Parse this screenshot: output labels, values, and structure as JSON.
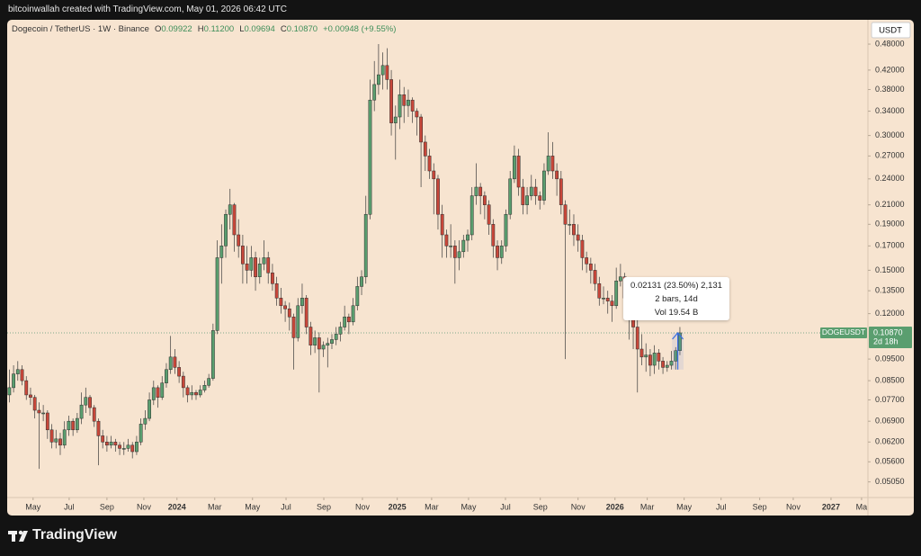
{
  "chart_data": {
    "type": "candlestick",
    "header": "bitcoinwallah created with TradingView.com, May 01, 2026 06:42 UTC",
    "symbol": "Dogecoin / TetherUS · 1W · Binance",
    "ohlc_fields": [
      {
        "key": "O",
        "value": "0.09922"
      },
      {
        "key": "H",
        "value": "0.11200"
      },
      {
        "key": "L",
        "value": "0.09694"
      },
      {
        "key": "C",
        "value": "0.10870"
      }
    ],
    "change": "+0.00948 (+9.55%)",
    "currency": "USDT",
    "ticker": "DOGEUSDT",
    "last_price": {
      "value": 0.1087,
      "label": "0.10870"
    },
    "countdown": "2d 18h",
    "measure_lines": [
      "0.02131 (23.50%) 2,131",
      "2 bars, 14d",
      "Vol 19.54 B"
    ],
    "brand": "TradingView",
    "log_scale": true,
    "grid": false,
    "up_color": "#5a9e6f",
    "down_color": "#c8473a",
    "ylim": [
      0.0466,
      0.544
    ],
    "yticks": [
      {
        "value": 0.48,
        "label": "0.48000"
      },
      {
        "value": 0.42,
        "label": "0.42000"
      },
      {
        "value": 0.38,
        "label": "0.38000"
      },
      {
        "value": 0.34,
        "label": "0.34000"
      },
      {
        "value": 0.3,
        "label": "0.30000"
      },
      {
        "value": 0.27,
        "label": "0.27000"
      },
      {
        "value": 0.24,
        "label": "0.24000"
      },
      {
        "value": 0.21,
        "label": "0.21000"
      },
      {
        "value": 0.19,
        "label": "0.19000"
      },
      {
        "value": 0.17,
        "label": "0.17000"
      },
      {
        "value": 0.15,
        "label": "0.15000"
      },
      {
        "value": 0.135,
        "label": "0.13500"
      },
      {
        "value": 0.12,
        "label": "0.12000"
      },
      {
        "value": 0.095,
        "label": "0.09500"
      },
      {
        "value": 0.085,
        "label": "0.08500"
      },
      {
        "value": 0.077,
        "label": "0.07700"
      },
      {
        "value": 0.069,
        "label": "0.06900"
      },
      {
        "value": 0.062,
        "label": "0.06200"
      },
      {
        "value": 0.056,
        "label": "0.05600"
      },
      {
        "value": 0.0505,
        "label": "0.05050"
      }
    ],
    "xlim": [
      -0.5,
      202.3
    ],
    "xticks": [
      {
        "value": 5.6,
        "label": "May"
      },
      {
        "value": 14.1,
        "label": "Jul"
      },
      {
        "value": 23,
        "label": "Sep"
      },
      {
        "value": 31.7,
        "label": "Nov"
      },
      {
        "value": 39.5,
        "label": "2024"
      },
      {
        "value": 48.4,
        "label": "Mar"
      },
      {
        "value": 57.3,
        "label": "May"
      },
      {
        "value": 65.2,
        "label": "Jul"
      },
      {
        "value": 74.1,
        "label": "Sep"
      },
      {
        "value": 83.2,
        "label": "Nov"
      },
      {
        "value": 91.4,
        "label": "2025"
      },
      {
        "value": 99.5,
        "label": "Mar"
      },
      {
        "value": 108.2,
        "label": "May"
      },
      {
        "value": 116.9,
        "label": "Jul"
      },
      {
        "value": 125.1,
        "label": "Sep"
      },
      {
        "value": 134,
        "label": "Nov"
      },
      {
        "value": 142.7,
        "label": "2026"
      },
      {
        "value": 150.3,
        "label": "Mar"
      },
      {
        "value": 159,
        "label": "May"
      },
      {
        "value": 167.7,
        "label": "Jul"
      },
      {
        "value": 176.8,
        "label": "Sep"
      },
      {
        "value": 184.7,
        "label": "Nov"
      },
      {
        "value": 193.6,
        "label": "2027"
      },
      {
        "value": 200.8,
        "label": "Ma"
      }
    ],
    "candles": [
      [
        0.079,
        0.09,
        0.076,
        0.082
      ],
      [
        0.082,
        0.092,
        0.08,
        0.088
      ],
      [
        0.088,
        0.094,
        0.085,
        0.09
      ],
      [
        0.09,
        0.092,
        0.083,
        0.085
      ],
      [
        0.085,
        0.087,
        0.077,
        0.079
      ],
      [
        0.079,
        0.082,
        0.075,
        0.078
      ],
      [
        0.078,
        0.079,
        0.07,
        0.073
      ],
      [
        0.073,
        0.076,
        0.054,
        0.072
      ],
      [
        0.072,
        0.075,
        0.069,
        0.072
      ],
      [
        0.072,
        0.073,
        0.063,
        0.066
      ],
      [
        0.066,
        0.068,
        0.06,
        0.062
      ],
      [
        0.062,
        0.066,
        0.06,
        0.063
      ],
      [
        0.063,
        0.065,
        0.058,
        0.061
      ],
      [
        0.061,
        0.069,
        0.06,
        0.066
      ],
      [
        0.066,
        0.071,
        0.064,
        0.069
      ],
      [
        0.069,
        0.07,
        0.064,
        0.066
      ],
      [
        0.066,
        0.072,
        0.065,
        0.07
      ],
      [
        0.07,
        0.08,
        0.068,
        0.075
      ],
      [
        0.075,
        0.082,
        0.072,
        0.078
      ],
      [
        0.078,
        0.079,
        0.071,
        0.074
      ],
      [
        0.074,
        0.075,
        0.067,
        0.069
      ],
      [
        0.069,
        0.07,
        0.055,
        0.064
      ],
      [
        0.064,
        0.066,
        0.06,
        0.062
      ],
      [
        0.062,
        0.064,
        0.059,
        0.061
      ],
      [
        0.061,
        0.064,
        0.06,
        0.062
      ],
      [
        0.062,
        0.063,
        0.059,
        0.061
      ],
      [
        0.061,
        0.062,
        0.058,
        0.06
      ],
      [
        0.06,
        0.062,
        0.058,
        0.06
      ],
      [
        0.06,
        0.063,
        0.059,
        0.061
      ],
      [
        0.061,
        0.062,
        0.057,
        0.059
      ],
      [
        0.059,
        0.064,
        0.058,
        0.062
      ],
      [
        0.062,
        0.07,
        0.061,
        0.068
      ],
      [
        0.068,
        0.073,
        0.066,
        0.07
      ],
      [
        0.07,
        0.08,
        0.069,
        0.077
      ],
      [
        0.077,
        0.085,
        0.075,
        0.082
      ],
      [
        0.082,
        0.083,
        0.074,
        0.078
      ],
      [
        0.078,
        0.087,
        0.077,
        0.084
      ],
      [
        0.084,
        0.093,
        0.082,
        0.09
      ],
      [
        0.09,
        0.107,
        0.088,
        0.096
      ],
      [
        0.096,
        0.1,
        0.088,
        0.091
      ],
      [
        0.091,
        0.094,
        0.084,
        0.087
      ],
      [
        0.087,
        0.089,
        0.078,
        0.082
      ],
      [
        0.082,
        0.083,
        0.076,
        0.079
      ],
      [
        0.079,
        0.083,
        0.077,
        0.08
      ],
      [
        0.08,
        0.081,
        0.077,
        0.079
      ],
      [
        0.079,
        0.083,
        0.078,
        0.081
      ],
      [
        0.081,
        0.085,
        0.08,
        0.083
      ],
      [
        0.083,
        0.088,
        0.082,
        0.086
      ],
      [
        0.086,
        0.114,
        0.085,
        0.11
      ],
      [
        0.11,
        0.175,
        0.108,
        0.16
      ],
      [
        0.16,
        0.19,
        0.14,
        0.17
      ],
      [
        0.17,
        0.205,
        0.16,
        0.2
      ],
      [
        0.2,
        0.228,
        0.185,
        0.21
      ],
      [
        0.21,
        0.212,
        0.165,
        0.18
      ],
      [
        0.18,
        0.195,
        0.16,
        0.17
      ],
      [
        0.17,
        0.18,
        0.14,
        0.155
      ],
      [
        0.155,
        0.17,
        0.14,
        0.15
      ],
      [
        0.15,
        0.17,
        0.145,
        0.16
      ],
      [
        0.16,
        0.165,
        0.135,
        0.145
      ],
      [
        0.145,
        0.16,
        0.14,
        0.155
      ],
      [
        0.155,
        0.175,
        0.15,
        0.16
      ],
      [
        0.16,
        0.165,
        0.14,
        0.148
      ],
      [
        0.148,
        0.155,
        0.135,
        0.14
      ],
      [
        0.14,
        0.145,
        0.125,
        0.13
      ],
      [
        0.13,
        0.137,
        0.12,
        0.125
      ],
      [
        0.125,
        0.128,
        0.115,
        0.123
      ],
      [
        0.123,
        0.127,
        0.11,
        0.118
      ],
      [
        0.118,
        0.12,
        0.09,
        0.106
      ],
      [
        0.106,
        0.13,
        0.104,
        0.125
      ],
      [
        0.125,
        0.14,
        0.12,
        0.13
      ],
      [
        0.13,
        0.132,
        0.108,
        0.112
      ],
      [
        0.112,
        0.115,
        0.097,
        0.102
      ],
      [
        0.102,
        0.11,
        0.098,
        0.106
      ],
      [
        0.106,
        0.109,
        0.08,
        0.1
      ],
      [
        0.1,
        0.104,
        0.096,
        0.102
      ],
      [
        0.102,
        0.106,
        0.091,
        0.103
      ],
      [
        0.103,
        0.108,
        0.1,
        0.105
      ],
      [
        0.105,
        0.112,
        0.102,
        0.108
      ],
      [
        0.108,
        0.115,
        0.104,
        0.112
      ],
      [
        0.112,
        0.125,
        0.11,
        0.118
      ],
      [
        0.118,
        0.12,
        0.108,
        0.115
      ],
      [
        0.115,
        0.13,
        0.113,
        0.125
      ],
      [
        0.125,
        0.145,
        0.122,
        0.138
      ],
      [
        0.138,
        0.15,
        0.132,
        0.145
      ],
      [
        0.145,
        0.22,
        0.14,
        0.2
      ],
      [
        0.2,
        0.4,
        0.195,
        0.36
      ],
      [
        0.36,
        0.44,
        0.34,
        0.39
      ],
      [
        0.39,
        0.48,
        0.37,
        0.41
      ],
      [
        0.41,
        0.46,
        0.38,
        0.43
      ],
      [
        0.43,
        0.47,
        0.38,
        0.4
      ],
      [
        0.4,
        0.42,
        0.3,
        0.32
      ],
      [
        0.32,
        0.35,
        0.265,
        0.33
      ],
      [
        0.33,
        0.4,
        0.31,
        0.37
      ],
      [
        0.37,
        0.385,
        0.32,
        0.35
      ],
      [
        0.35,
        0.38,
        0.33,
        0.36
      ],
      [
        0.36,
        0.365,
        0.32,
        0.34
      ],
      [
        0.34,
        0.345,
        0.3,
        0.33
      ],
      [
        0.33,
        0.335,
        0.23,
        0.29
      ],
      [
        0.29,
        0.3,
        0.25,
        0.27
      ],
      [
        0.27,
        0.28,
        0.24,
        0.25
      ],
      [
        0.25,
        0.26,
        0.2,
        0.24
      ],
      [
        0.24,
        0.245,
        0.185,
        0.2
      ],
      [
        0.2,
        0.21,
        0.16,
        0.18
      ],
      [
        0.18,
        0.185,
        0.16,
        0.17
      ],
      [
        0.17,
        0.19,
        0.16,
        0.17
      ],
      [
        0.17,
        0.175,
        0.14,
        0.16
      ],
      [
        0.16,
        0.175,
        0.15,
        0.165
      ],
      [
        0.165,
        0.18,
        0.16,
        0.175
      ],
      [
        0.175,
        0.185,
        0.165,
        0.18
      ],
      [
        0.18,
        0.23,
        0.175,
        0.22
      ],
      [
        0.22,
        0.26,
        0.21,
        0.23
      ],
      [
        0.23,
        0.235,
        0.2,
        0.22
      ],
      [
        0.22,
        0.225,
        0.195,
        0.21
      ],
      [
        0.21,
        0.215,
        0.18,
        0.19
      ],
      [
        0.19,
        0.195,
        0.16,
        0.17
      ],
      [
        0.17,
        0.175,
        0.15,
        0.16
      ],
      [
        0.16,
        0.175,
        0.155,
        0.17
      ],
      [
        0.17,
        0.205,
        0.165,
        0.2
      ],
      [
        0.2,
        0.25,
        0.195,
        0.24
      ],
      [
        0.24,
        0.285,
        0.235,
        0.27
      ],
      [
        0.27,
        0.28,
        0.22,
        0.23
      ],
      [
        0.23,
        0.24,
        0.2,
        0.21
      ],
      [
        0.21,
        0.23,
        0.2,
        0.22
      ],
      [
        0.22,
        0.245,
        0.215,
        0.23
      ],
      [
        0.23,
        0.24,
        0.21,
        0.22
      ],
      [
        0.22,
        0.225,
        0.205,
        0.215
      ],
      [
        0.215,
        0.26,
        0.21,
        0.25
      ],
      [
        0.25,
        0.305,
        0.245,
        0.27
      ],
      [
        0.27,
        0.29,
        0.24,
        0.25
      ],
      [
        0.25,
        0.26,
        0.22,
        0.24
      ],
      [
        0.24,
        0.25,
        0.2,
        0.21
      ],
      [
        0.21,
        0.215,
        0.095,
        0.19
      ],
      [
        0.19,
        0.205,
        0.18,
        0.19
      ],
      [
        0.19,
        0.2,
        0.17,
        0.18
      ],
      [
        0.18,
        0.19,
        0.165,
        0.175
      ],
      [
        0.175,
        0.18,
        0.15,
        0.16
      ],
      [
        0.16,
        0.165,
        0.148,
        0.155
      ],
      [
        0.155,
        0.16,
        0.14,
        0.15
      ],
      [
        0.15,
        0.155,
        0.135,
        0.14
      ],
      [
        0.14,
        0.145,
        0.125,
        0.13
      ],
      [
        0.13,
        0.138,
        0.126,
        0.13
      ],
      [
        0.13,
        0.135,
        0.12,
        0.128
      ],
      [
        0.128,
        0.132,
        0.115,
        0.125
      ],
      [
        0.125,
        0.152,
        0.123,
        0.142
      ],
      [
        0.142,
        0.155,
        0.138,
        0.145
      ],
      [
        0.145,
        0.148,
        0.125,
        0.13
      ],
      [
        0.13,
        0.133,
        0.105,
        0.12
      ],
      [
        0.12,
        0.123,
        0.1,
        0.112
      ],
      [
        0.112,
        0.117,
        0.08,
        0.1
      ],
      [
        0.1,
        0.108,
        0.092,
        0.096
      ],
      [
        0.096,
        0.103,
        0.089,
        0.097
      ],
      [
        0.097,
        0.1,
        0.087,
        0.092
      ],
      [
        0.092,
        0.102,
        0.088,
        0.098
      ],
      [
        0.098,
        0.1,
        0.09,
        0.094
      ],
      [
        0.094,
        0.096,
        0.088,
        0.091
      ],
      [
        0.091,
        0.094,
        0.089,
        0.092
      ],
      [
        0.092,
        0.099,
        0.09,
        0.094
      ],
      [
        0.094,
        0.101,
        0.09,
        0.0992
      ],
      [
        0.09922,
        0.112,
        0.09694,
        0.1087
      ]
    ]
  }
}
